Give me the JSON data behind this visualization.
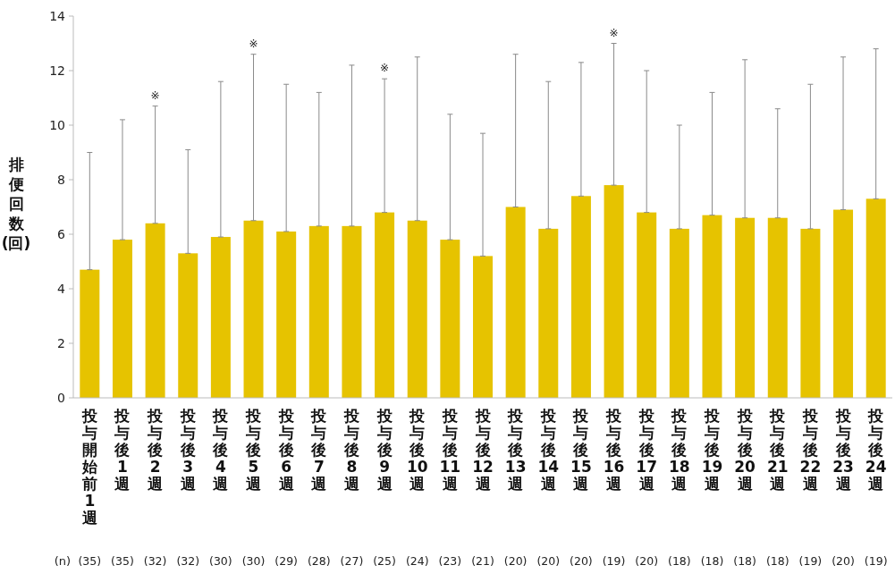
{
  "chart_data": {
    "type": "bar",
    "ylabel": "排便回数(回)",
    "categories": [
      "投与開始前1週",
      "投与後1週",
      "投与後2週",
      "投与後3週",
      "投与後4週",
      "投与後5週",
      "投与後6週",
      "投与後7週",
      "投与後8週",
      "投与後9週",
      "投与後10週",
      "投与後11週",
      "投与後12週",
      "投与後13週",
      "投与後14週",
      "投与後15週",
      "投与後16週",
      "投与後17週",
      "投与後18週",
      "投与後19週",
      "投与後20週",
      "投与後21週",
      "投与後22週",
      "投与後23週",
      "投与後24週"
    ],
    "values": [
      4.7,
      5.8,
      6.4,
      5.3,
      5.9,
      6.5,
      6.1,
      6.3,
      6.3,
      6.8,
      6.5,
      5.8,
      5.2,
      7.0,
      6.2,
      7.4,
      7.8,
      6.8,
      6.2,
      6.7,
      6.6,
      6.6,
      6.2,
      6.9,
      7.3
    ],
    "errors": [
      [
        4.7,
        9.0
      ],
      [
        5.8,
        10.2
      ],
      [
        6.4,
        10.7
      ],
      [
        5.3,
        9.1
      ],
      [
        5.9,
        11.6
      ],
      [
        6.5,
        12.6
      ],
      [
        6.1,
        11.5
      ],
      [
        6.3,
        11.2
      ],
      [
        6.3,
        12.2
      ],
      [
        6.8,
        11.7
      ],
      [
        6.5,
        12.5
      ],
      [
        5.8,
        10.4
      ],
      [
        5.2,
        9.7
      ],
      [
        7.0,
        12.6
      ],
      [
        6.2,
        11.6
      ],
      [
        7.4,
        12.3
      ],
      [
        7.8,
        13.0
      ],
      [
        6.8,
        12.0
      ],
      [
        6.2,
        10.0
      ],
      [
        6.7,
        11.2
      ],
      [
        6.6,
        12.4
      ],
      [
        6.6,
        10.6
      ],
      [
        6.2,
        11.5
      ],
      [
        6.9,
        12.5
      ],
      [
        7.3,
        12.8
      ]
    ],
    "color": "#e6c300",
    "ylim": [
      0,
      14
    ],
    "yticks": [
      0,
      2,
      4,
      6,
      8,
      10,
      12,
      14
    ],
    "annotations": [
      {
        "text": "※",
        "x": "投与後2週",
        "y": 10.7
      },
      {
        "text": "※",
        "x": "投与後5週",
        "y": 12.6
      },
      {
        "text": "※",
        "x": "投与後9週",
        "y": 11.7
      },
      {
        "text": "※",
        "x": "投与後16週",
        "y": 13.0
      },
      "(n)",
      "(35)",
      "(35)",
      "(32)",
      "(32)",
      "(30)",
      "(30)",
      "(29)",
      "(28)",
      "(27)",
      "(25)",
      "(24)",
      "(23)",
      "(21)",
      "(20)",
      "(20)",
      "(20)",
      "(19)",
      "(20)",
      "(18)",
      "(18)",
      "(18)",
      "(18)",
      "(19)",
      "(20)",
      "(19)"
    ]
  }
}
